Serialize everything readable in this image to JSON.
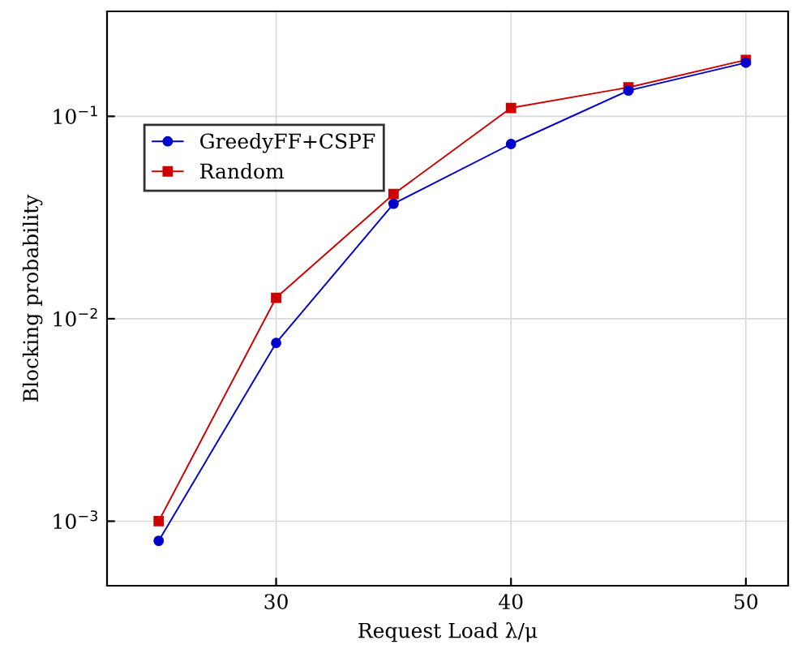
{
  "chart_data": {
    "type": "line",
    "xlabel": "Request Load λ/μ",
    "ylabel": "Blocking probability",
    "x": [
      25,
      30,
      35,
      40,
      45,
      50
    ],
    "series": [
      {
        "name": "GreedyFF+CSPF",
        "color": "#0000cc",
        "marker": "circle",
        "values": [
          0.0008,
          0.0076,
          0.037,
          0.073,
          0.134,
          0.184
        ]
      },
      {
        "name": "Random",
        "color": "#cc0000",
        "marker": "square",
        "values": [
          0.001,
          0.0127,
          0.0413,
          0.11,
          0.139,
          0.19
        ]
      }
    ],
    "log": "y",
    "xlim": [
      22.8,
      51.8
    ],
    "ylim": [
      0.00048,
      0.33
    ],
    "xticks": [
      30,
      40,
      50
    ],
    "yticks": [
      {
        "value": 0.001,
        "label": "10$^{−3}$"
      },
      {
        "value": 0.01,
        "label": "10$^{−2}$"
      },
      {
        "value": 0.1,
        "label": "10$^{−1}$"
      }
    ],
    "grid": true,
    "legend": "top left",
    "line_style": "solid"
  }
}
